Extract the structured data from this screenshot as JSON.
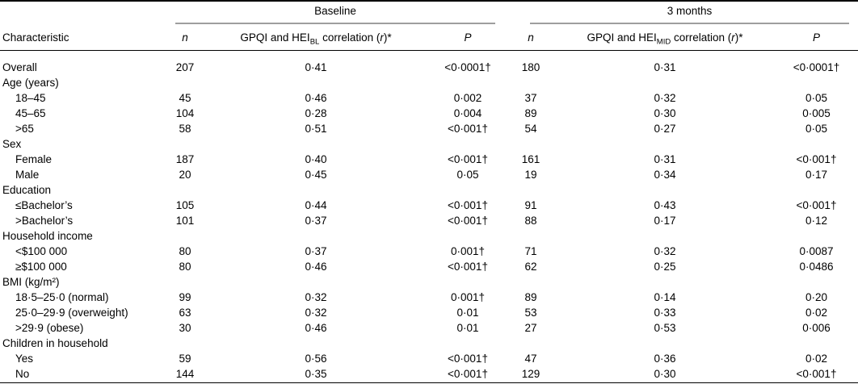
{
  "colors": {
    "text": "#000000",
    "background": "#ffffff",
    "rule_gray": "#9e9e9e"
  },
  "table": {
    "groups": {
      "baseline": "Baseline",
      "three_months": "3 months"
    },
    "header": {
      "characteristic": "Characteristic",
      "n": "n",
      "p": "P",
      "corr_bl": {
        "prefix": "GPQI and HEI",
        "sub": "BL",
        "mid": " correlation (",
        "r": "r",
        "suffix": ")*"
      },
      "corr_mid": {
        "prefix": "GPQI and HEI",
        "sub": "MID",
        "mid": " correlation (",
        "r": "r",
        "suffix": ")*"
      }
    },
    "rows": [
      {
        "type": "data",
        "indent": false,
        "label": "Overall",
        "values": [
          "207",
          "0·41",
          "<0·0001†",
          "180",
          "0·31",
          "<0·0001†"
        ]
      },
      {
        "type": "section",
        "indent": false,
        "label": "Age (years)"
      },
      {
        "type": "data",
        "indent": true,
        "label": "18–45",
        "values": [
          "45",
          "0·46",
          "0·002",
          "37",
          "0·32",
          "0·05"
        ]
      },
      {
        "type": "data",
        "indent": true,
        "label": "45–65",
        "values": [
          "104",
          "0·28",
          "0·004",
          "89",
          "0·30",
          "0·005"
        ]
      },
      {
        "type": "data",
        "indent": true,
        "label": ">65",
        "values": [
          "58",
          "0·51",
          "<0·001†",
          "54",
          "0·27",
          "0·05"
        ]
      },
      {
        "type": "section",
        "indent": false,
        "label": "Sex"
      },
      {
        "type": "data",
        "indent": true,
        "label": "Female",
        "values": [
          "187",
          "0·40",
          "<0·001†",
          "161",
          "0·31",
          "<0·001†"
        ]
      },
      {
        "type": "data",
        "indent": true,
        "label": "Male",
        "values": [
          "20",
          "0·45",
          "0·05",
          "19",
          "0·34",
          "0·17"
        ]
      },
      {
        "type": "section",
        "indent": false,
        "label": "Education"
      },
      {
        "type": "data",
        "indent": true,
        "label": "≤Bachelor’s",
        "values": [
          "105",
          "0·44",
          "<0·001†",
          "91",
          "0·43",
          "<0·001†"
        ]
      },
      {
        "type": "data",
        "indent": true,
        "label": ">Bachelor’s",
        "values": [
          "101",
          "0·37",
          "<0·001†",
          "88",
          "0·17",
          "0·12"
        ]
      },
      {
        "type": "section",
        "indent": false,
        "label": "Household income"
      },
      {
        "type": "data",
        "indent": true,
        "label": "<$100 000",
        "values": [
          "80",
          "0·37",
          "0·001†",
          "71",
          "0·32",
          "0·0087"
        ]
      },
      {
        "type": "data",
        "indent": true,
        "label": "≥$100 000",
        "values": [
          "80",
          "0·46",
          "<0·001†",
          "62",
          "0·25",
          "0·0486"
        ]
      },
      {
        "type": "section",
        "indent": false,
        "label": "BMI (kg/m²)"
      },
      {
        "type": "data",
        "indent": true,
        "label": "18·5–25·0 (normal)",
        "values": [
          "99",
          "0·32",
          "0·001†",
          "89",
          "0·14",
          "0·20"
        ]
      },
      {
        "type": "data",
        "indent": true,
        "label": "25·0–29·9 (overweight)",
        "values": [
          "63",
          "0·32",
          "0·01",
          "53",
          "0·33",
          "0·02"
        ]
      },
      {
        "type": "data",
        "indent": true,
        "label": ">29·9 (obese)",
        "values": [
          "30",
          "0·46",
          "0·01",
          "27",
          "0·53",
          "0·006"
        ]
      },
      {
        "type": "section",
        "indent": false,
        "label": "Children in household"
      },
      {
        "type": "data",
        "indent": true,
        "label": "Yes",
        "values": [
          "59",
          "0·56",
          "<0·001†",
          "47",
          "0·36",
          "0·02"
        ]
      },
      {
        "type": "data",
        "indent": true,
        "label": "No",
        "values": [
          "144",
          "0·35",
          "<0·001†",
          "129",
          "0·30",
          "<0·001†"
        ]
      }
    ]
  }
}
